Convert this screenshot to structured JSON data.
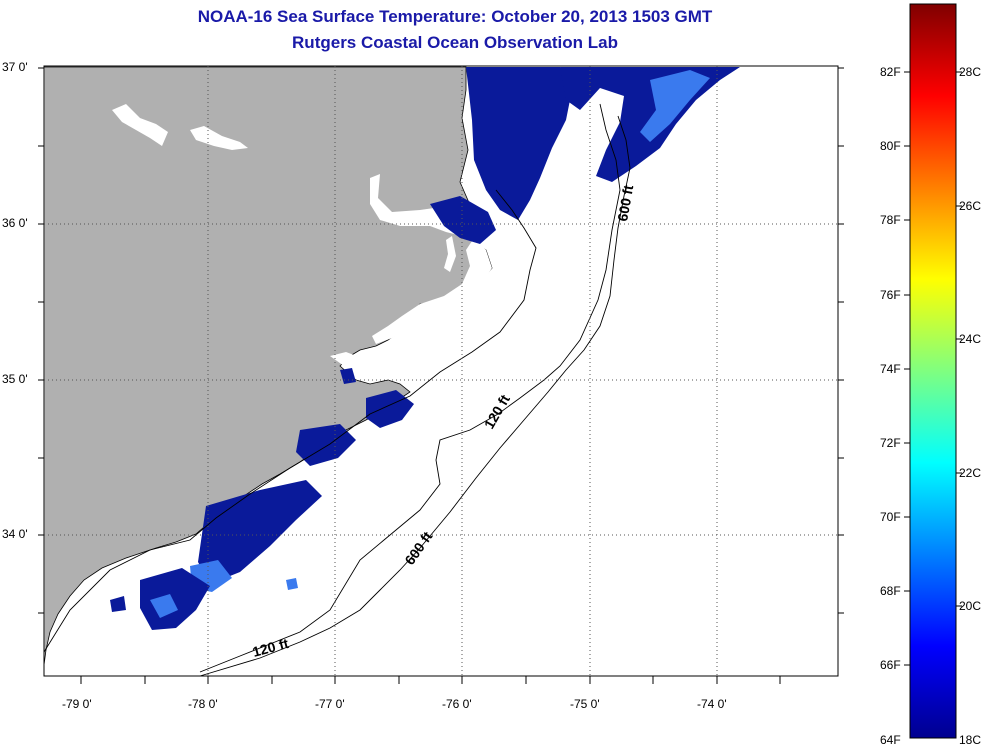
{
  "title": {
    "line1": "NOAA-16 Sea Surface Temperature:  October 20, 2013 1503 GMT",
    "line2": "Rutgers Coastal Ocean Observation Lab"
  },
  "axes": {
    "latitude_labels": [
      "37 0'",
      "36 0'",
      "35 0'",
      "34 0'"
    ],
    "longitude_labels": [
      "-79 0'",
      "-78 0'",
      "-77 0'",
      "-76 0'",
      "-75 0'",
      "-74 0'"
    ]
  },
  "contours": {
    "labels": [
      "600 ft",
      "120 ft",
      "600 ft",
      "120 ft"
    ]
  },
  "colorbar": {
    "fahrenheit_labels": [
      "82F",
      "80F",
      "78F",
      "76F",
      "74F",
      "72F",
      "70F",
      "68F",
      "66F",
      "64F"
    ],
    "celsius_labels": [
      "28C",
      "26C",
      "24C",
      "22C",
      "20C",
      "18C"
    ]
  },
  "colors": {
    "title": "#1a1aa8",
    "land": "#b0b0b0",
    "water_no_data": "#ffffff",
    "sst_cold": "#0a1a9a",
    "sst_mid": "#3a7aee"
  }
}
